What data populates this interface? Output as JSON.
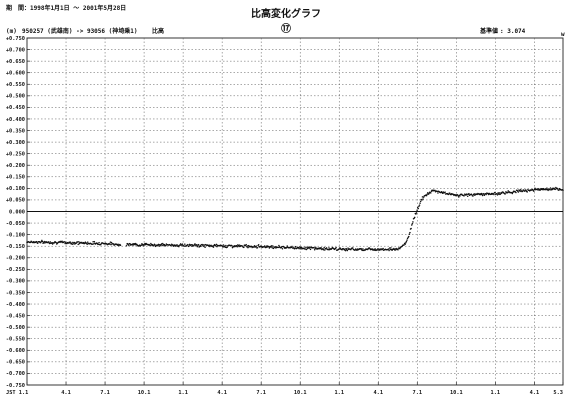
{
  "header": {
    "period_label": "期　間：",
    "period_value": "1998年1月1日 ～ 2001年5月28日",
    "title": "比高変化グラフ",
    "figure_number": "⑰",
    "unit": "(m)",
    "stations": "950257 (武雄南) -> 93056 (神埼乗1)",
    "stations_suffix": "比高",
    "baseline_label": "基準値",
    "baseline_value": ": 3.074",
    "corner_mark": "w"
  },
  "chart_data": {
    "type": "scatter",
    "title": "比高変化グラフ",
    "ylabel": "(m)",
    "xlabel": "",
    "ylim": [
      -0.75,
      0.75
    ],
    "xlim": [
      0,
      41.2
    ],
    "y_ticks": [
      "+0.750",
      "+0.700",
      "+0.650",
      "+0.600",
      "+0.550",
      "+0.500",
      "+0.450",
      "+0.400",
      "+0.350",
      "+0.300",
      "+0.250",
      "+0.200",
      "+0.150",
      "+0.100",
      "+0.050",
      "0.000",
      "-0.050",
      "-0.100",
      "-0.150",
      "-0.200",
      "-0.250",
      "-0.300",
      "-0.350",
      "-0.400",
      "-0.450",
      "-0.500",
      "-0.550",
      "-0.600",
      "-0.650",
      "-0.700",
      "-0.750"
    ],
    "x_ticks": [
      {
        "label": "JST 1.1",
        "x": 0
      },
      {
        "label": "4.1",
        "x": 3
      },
      {
        "label": "7.1",
        "x": 6
      },
      {
        "label": "10.1",
        "x": 9
      },
      {
        "label": "1.1",
        "x": 12
      },
      {
        "label": "4.1",
        "x": 15
      },
      {
        "label": "7.1",
        "x": 18
      },
      {
        "label": "10.1",
        "x": 21
      },
      {
        "label": "1.1",
        "x": 24
      },
      {
        "label": "4.1",
        "x": 27
      },
      {
        "label": "7.1",
        "x": 30
      },
      {
        "label": "10.1",
        "x": 33
      },
      {
        "label": "1.1",
        "x": 36
      },
      {
        "label": "4.1",
        "x": 39
      },
      {
        "label": "5.3",
        "x": 41.2
      }
    ],
    "zero_line": 0.0,
    "grid": true,
    "series": [
      {
        "trend_points": [
          {
            "x": 0,
            "y": -0.131
          },
          {
            "x": 6,
            "y": -0.138
          },
          {
            "x": 7,
            "y": -0.142
          },
          {
            "x": 12,
            "y": -0.146
          },
          {
            "x": 18,
            "y": -0.151
          },
          {
            "x": 24,
            "y": -0.163
          },
          {
            "x": 27,
            "y": -0.163
          },
          {
            "x": 28.6,
            "y": -0.163
          },
          {
            "x": 29.2,
            "y": -0.13
          },
          {
            "x": 29.8,
            "y": -0.02
          },
          {
            "x": 30.4,
            "y": 0.06
          },
          {
            "x": 31.2,
            "y": 0.09
          },
          {
            "x": 33,
            "y": 0.07
          },
          {
            "x": 36,
            "y": 0.077
          },
          {
            "x": 39,
            "y": 0.095
          },
          {
            "x": 41.2,
            "y": 0.096
          }
        ]
      }
    ]
  }
}
